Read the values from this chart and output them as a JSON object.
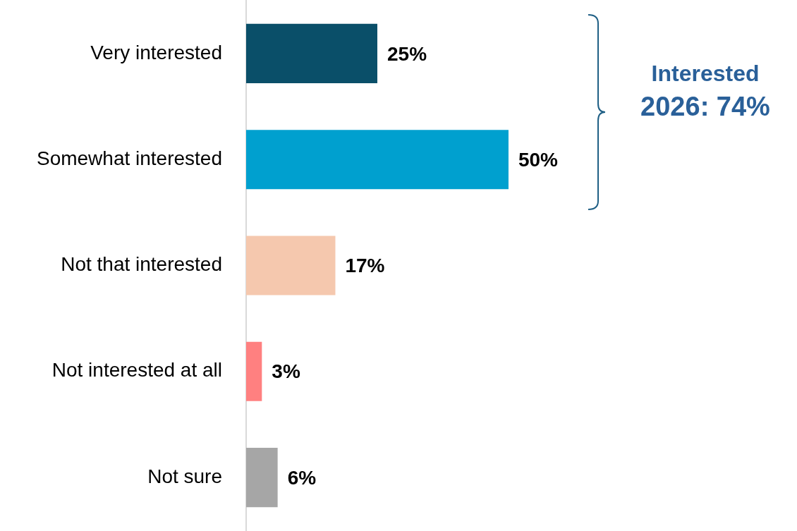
{
  "chart_data": {
    "type": "bar",
    "orientation": "horizontal",
    "categories": [
      "Very interested",
      "Somewhat interested",
      "Not that interested",
      "Not interested at all",
      "Not sure"
    ],
    "values": [
      25,
      50,
      17,
      3,
      6
    ],
    "colors": [
      "#0a4f69",
      "#00a0cf",
      "#f5c8ae",
      "#ff8080",
      "#a6a6a6"
    ],
    "value_labels": [
      "25%",
      "50%",
      "17%",
      "3%",
      "6%"
    ],
    "annotations": [
      "Interested",
      "2026: 74%"
    ],
    "legend": false
  }
}
